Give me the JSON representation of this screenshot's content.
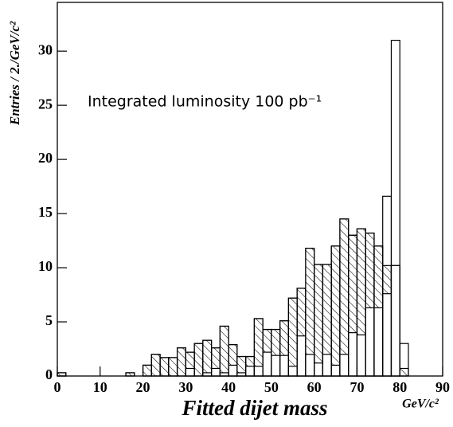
{
  "chart_data": {
    "type": "histogram",
    "ylabel": "Entries / 2./GeV/c²",
    "xlabel": "Fitted dijet mass",
    "xunit": "GeV/c²",
    "annotation": "Integrated luminosity 100 pb⁻¹",
    "bins": [
      0,
      2,
      4,
      6,
      8,
      10,
      12,
      14,
      16,
      18,
      20,
      22,
      24,
      26,
      28,
      30,
      32,
      34,
      36,
      38,
      40,
      42,
      44,
      46,
      48,
      50,
      52,
      54,
      56,
      58,
      60,
      62,
      64,
      66,
      68,
      70,
      72,
      74,
      76,
      78,
      80,
      82,
      84,
      86,
      88,
      90
    ],
    "series": [
      {
        "color": "#000000",
        "fill": "hatch",
        "values": [
          0.3,
          0,
          0,
          0,
          0,
          0,
          0,
          0,
          0.3,
          0,
          1.0,
          2.0,
          1.7,
          1.7,
          2.6,
          2.2,
          3.0,
          3.3,
          2.6,
          4.6,
          2.9,
          1.8,
          1.8,
          5.3,
          4.3,
          4.3,
          5.1,
          7.2,
          8.1,
          11.8,
          10.3,
          10.3,
          12.0,
          14.5,
          13.0,
          13.6,
          13.2,
          12.0,
          10.2,
          10.2,
          0.7,
          0,
          0,
          0,
          0
        ]
      },
      {
        "color": "#000000",
        "fill": "white",
        "values": [
          0,
          0,
          0,
          0,
          0,
          0,
          0,
          0,
          0,
          0,
          0,
          0,
          0,
          0,
          0,
          0.7,
          0,
          0.3,
          0.7,
          0.3,
          1.0,
          0.3,
          0.9,
          0.9,
          2.2,
          1.9,
          1.9,
          0.9,
          3.7,
          2.0,
          1.2,
          2.0,
          1.0,
          2.0,
          4.0,
          3.8,
          6.3,
          6.3,
          7.6,
          10.2,
          0,
          0,
          0,
          0,
          0
        ]
      },
      {
        "color": "#000000",
        "fill": "none",
        "values": [
          0.3,
          0,
          0,
          0,
          0,
          0,
          0,
          0,
          0.3,
          0,
          1.0,
          2.0,
          1.7,
          1.7,
          2.6,
          2.2,
          3.0,
          3.3,
          2.6,
          4.6,
          2.9,
          1.8,
          1.8,
          5.3,
          4.3,
          4.3,
          5.1,
          7.2,
          8.1,
          11.8,
          10.3,
          10.3,
          12.0,
          14.5,
          13.0,
          13.6,
          13.2,
          12.0,
          16.6,
          31.0,
          3.0,
          0,
          0,
          0,
          0
        ]
      }
    ],
    "xlim": [
      0,
      90
    ],
    "xticks": [
      0,
      10,
      20,
      30,
      40,
      50,
      60,
      70,
      80,
      90
    ],
    "ylim": [
      0,
      34.5
    ],
    "yticks": [
      0,
      5,
      10,
      15,
      20,
      25,
      30
    ]
  }
}
